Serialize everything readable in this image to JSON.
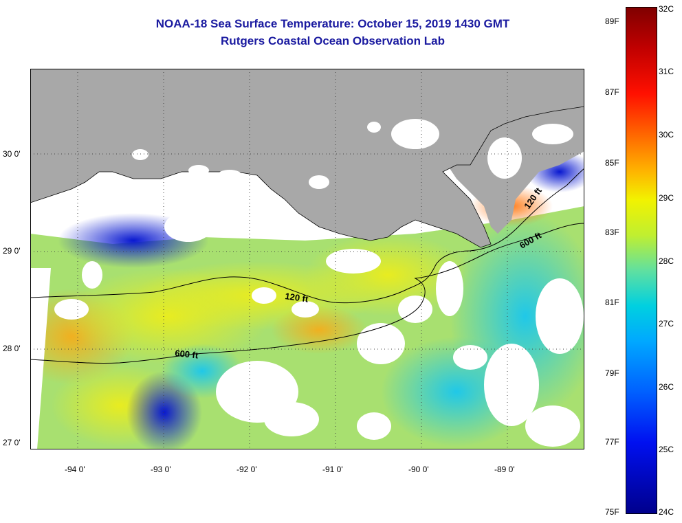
{
  "title": "NOAA-18 Sea Surface Temperature:  October 15, 2019 1430 GMT",
  "subtitle": "Rutgers Coastal Ocean Observation Lab",
  "map": {
    "lat_labels": [
      "30 0'",
      "29 0'",
      "28 0'",
      "27 0'"
    ],
    "lon_labels": [
      "-94 0'",
      "-93 0'",
      "-92 0'",
      "-91 0'",
      "-90 0'",
      "-89 0'"
    ],
    "contours": [
      "120 ft",
      "600 ft",
      "120 ft",
      "600 ft"
    ],
    "colors": {
      "land": "#a8a8a8",
      "clouds": "#ffffff"
    }
  },
  "colorbar": {
    "fahrenheit": [
      "89F",
      "87F",
      "85F",
      "83F",
      "81F",
      "79F",
      "77F",
      "75F"
    ],
    "celsius": [
      "32C",
      "31C",
      "30C",
      "29C",
      "28C",
      "27C",
      "26C",
      "25C",
      "24C"
    ]
  }
}
